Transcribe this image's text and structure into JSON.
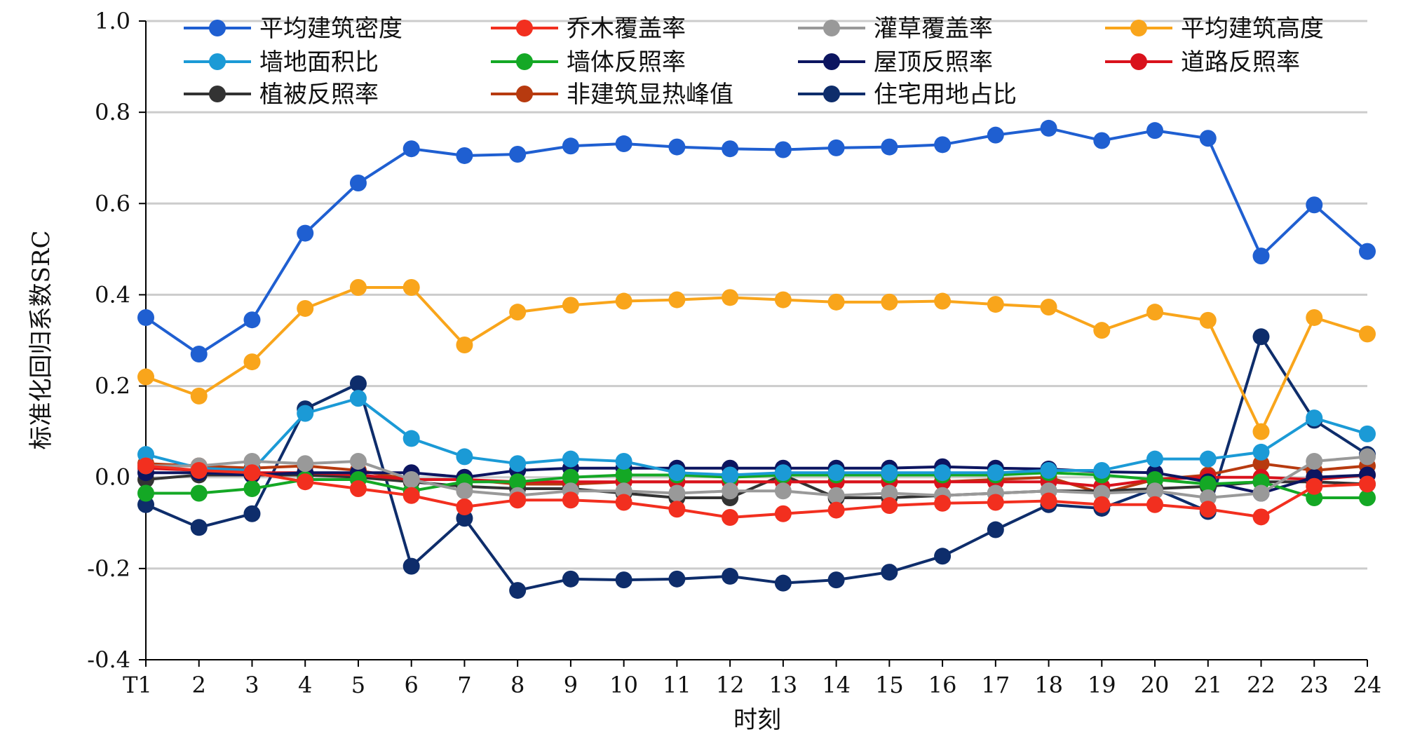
{
  "chart_data": {
    "type": "line",
    "title": "",
    "xlabel": "时刻",
    "ylabel": "标准化回归系数SRC",
    "ylim": [
      -0.4,
      1.0
    ],
    "yticks": [
      "-0.4",
      "-0.2",
      "0.0",
      "0.2",
      "0.4",
      "0.6",
      "0.8",
      "1.0"
    ],
    "grid": "horizontal",
    "legend_position": "top",
    "categories": [
      "T1",
      "2",
      "3",
      "4",
      "5",
      "6",
      "7",
      "8",
      "9",
      "10",
      "11",
      "12",
      "13",
      "14",
      "15",
      "16",
      "17",
      "18",
      "19",
      "20",
      "21",
      "22",
      "23",
      "24"
    ],
    "series": [
      {
        "name": "平均建筑密度",
        "color": "#1f5fd1",
        "values": [
          0.35,
          0.27,
          0.345,
          0.535,
          0.645,
          0.72,
          0.705,
          0.708,
          0.726,
          0.731,
          0.724,
          0.72,
          0.718,
          0.722,
          0.724,
          0.729,
          0.75,
          0.765,
          0.738,
          0.76,
          0.743,
          0.485,
          0.597,
          0.495
        ]
      },
      {
        "name": "乔木覆盖率",
        "color": "#f22f1f",
        "values": [
          0.025,
          0.015,
          0.01,
          -0.01,
          -0.025,
          -0.04,
          -0.065,
          -0.05,
          -0.05,
          -0.055,
          -0.07,
          -0.088,
          -0.08,
          -0.072,
          -0.062,
          -0.057,
          -0.055,
          -0.052,
          -0.06,
          -0.06,
          -0.07,
          -0.087,
          -0.02,
          -0.015
        ]
      },
      {
        "name": "灌草覆盖率",
        "color": "#999999",
        "values": [
          0.025,
          0.025,
          0.035,
          0.03,
          0.035,
          -0.005,
          -0.03,
          -0.04,
          -0.03,
          -0.03,
          -0.035,
          -0.03,
          -0.03,
          -0.04,
          -0.035,
          -0.04,
          -0.035,
          -0.03,
          -0.035,
          -0.03,
          -0.045,
          -0.035,
          0.035,
          0.045
        ]
      },
      {
        "name": "平均建筑高度",
        "color": "#f9a51b",
        "values": [
          0.22,
          0.178,
          0.253,
          0.37,
          0.416,
          0.416,
          0.29,
          0.362,
          0.377,
          0.386,
          0.389,
          0.394,
          0.389,
          0.384,
          0.384,
          0.386,
          0.379,
          0.373,
          0.322,
          0.362,
          0.344,
          0.1,
          0.35,
          0.314
        ]
      },
      {
        "name": "墙地面积比",
        "color": "#1b9ad6",
        "values": [
          0.05,
          0.02,
          0.015,
          0.14,
          0.173,
          0.085,
          0.045,
          0.03,
          0.04,
          0.035,
          0.01,
          0.005,
          0.01,
          0.01,
          0.01,
          0.01,
          0.01,
          0.015,
          0.015,
          0.04,
          0.04,
          0.055,
          0.13,
          0.095
        ]
      },
      {
        "name": "墙体反照率",
        "color": "#14a825",
        "values": [
          -0.035,
          -0.035,
          -0.025,
          -0.005,
          -0.005,
          -0.03,
          -0.01,
          -0.01,
          0.0,
          0.005,
          0.005,
          0.0,
          0.005,
          0.005,
          0.005,
          0.005,
          0.005,
          0.01,
          0.005,
          -0.005,
          -0.015,
          -0.01,
          -0.045,
          -0.045
        ]
      },
      {
        "name": "屋顶反照率",
        "color": "#0c1560",
        "values": [
          0.01,
          0.01,
          0.005,
          0.01,
          0.01,
          0.01,
          0.0,
          0.015,
          0.02,
          0.02,
          0.02,
          0.02,
          0.02,
          0.02,
          0.02,
          0.023,
          0.02,
          0.018,
          0.012,
          0.01,
          -0.01,
          -0.035,
          0.0,
          0.005
        ]
      },
      {
        "name": "道路反照率",
        "color": "#d9121c",
        "values": [
          0.02,
          0.015,
          0.01,
          0.01,
          0.005,
          -0.005,
          -0.005,
          -0.01,
          -0.01,
          -0.01,
          -0.01,
          -0.01,
          -0.01,
          -0.01,
          -0.01,
          -0.01,
          -0.01,
          -0.01,
          -0.02,
          -0.005,
          0.0,
          0.0,
          -0.005,
          0.005
        ]
      },
      {
        "name": "植被反照率",
        "color": "#333333",
        "values": [
          -0.005,
          0.005,
          0.005,
          0.005,
          0.0,
          -0.01,
          -0.02,
          -0.025,
          -0.025,
          -0.035,
          -0.045,
          -0.045,
          0.005,
          -0.045,
          -0.045,
          -0.04,
          -0.035,
          -0.03,
          -0.03,
          -0.025,
          -0.02,
          -0.01,
          -0.01,
          -0.015
        ]
      },
      {
        "name": "非建筑显热峰值",
        "color": "#b73a0f",
        "values": [
          0.03,
          0.025,
          0.02,
          0.025,
          0.015,
          -0.005,
          -0.005,
          -0.015,
          -0.015,
          -0.01,
          -0.01,
          -0.01,
          -0.01,
          -0.01,
          -0.01,
          -0.01,
          -0.005,
          0.0,
          -0.035,
          -0.005,
          0.005,
          0.03,
          0.015,
          0.025
        ]
      },
      {
        "name": "住宅用地占比",
        "color": "#0e2d6b",
        "values": [
          -0.06,
          -0.11,
          -0.08,
          0.15,
          0.205,
          -0.195,
          -0.09,
          -0.248,
          -0.223,
          -0.225,
          -0.223,
          -0.217,
          -0.232,
          -0.225,
          -0.208,
          -0.173,
          -0.115,
          -0.06,
          -0.068,
          -0.025,
          -0.075,
          0.308,
          0.125,
          0.05
        ]
      }
    ]
  }
}
